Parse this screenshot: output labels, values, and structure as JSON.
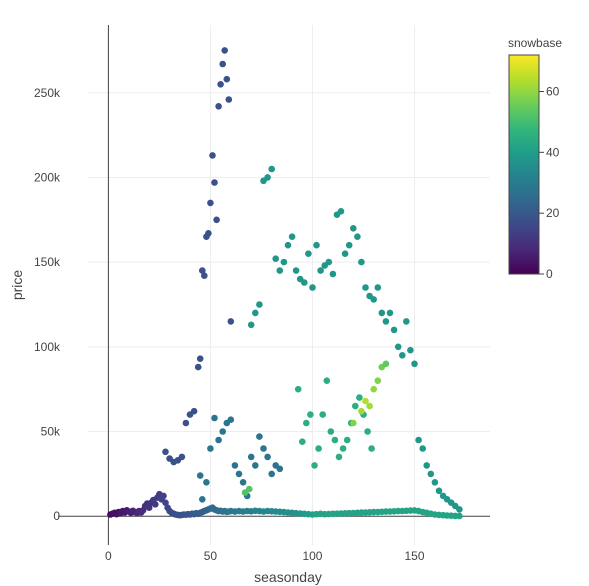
{
  "chart_data": {
    "type": "scatter",
    "title": "",
    "xlabel": "seasonday",
    "ylabel": "price",
    "xlim": [
      -10,
      187
    ],
    "ylim": [
      -17000,
      290000
    ],
    "x_ticks": [
      0,
      50,
      100,
      150
    ],
    "x_tick_labels": [
      "0",
      "50",
      "100",
      "150"
    ],
    "y_ticks": [
      0,
      50000,
      100000,
      150000,
      200000,
      250000
    ],
    "y_tick_labels": [
      "0",
      "50k",
      "100k",
      "150k",
      "200k",
      "250k"
    ],
    "grid": true,
    "colorbar": {
      "title": "snowbase",
      "range": [
        0,
        72
      ],
      "ticks": [
        0,
        20,
        40,
        60
      ],
      "tick_labels": [
        "0",
        "20",
        "40",
        "60"
      ],
      "colorscale": "viridis",
      "placement": "right"
    },
    "colorscale_stops": [
      "#440154",
      "#482878",
      "#3e4989",
      "#31688e",
      "#26828e",
      "#1f9e89",
      "#35b779",
      "#6ece58",
      "#b5de2b",
      "#fde725"
    ],
    "points": [
      [
        1,
        1000,
        2
      ],
      [
        2,
        1500,
        2
      ],
      [
        3,
        2000,
        3
      ],
      [
        4,
        1200,
        3
      ],
      [
        5,
        2500,
        3
      ],
      [
        6,
        1800,
        4
      ],
      [
        7,
        3000,
        5
      ],
      [
        8,
        2200,
        5
      ],
      [
        9,
        3500,
        5
      ],
      [
        10,
        2800,
        6
      ],
      [
        11,
        2000,
        6
      ],
      [
        12,
        3200,
        7
      ],
      [
        13,
        2500,
        7
      ],
      [
        14,
        1800,
        8
      ],
      [
        15,
        3000,
        8
      ],
      [
        16,
        2200,
        9
      ],
      [
        17,
        3500,
        9
      ],
      [
        18,
        6000,
        10
      ],
      [
        19,
        7500,
        10
      ],
      [
        20,
        5000,
        11
      ],
      [
        21,
        8000,
        11
      ],
      [
        22,
        9500,
        12
      ],
      [
        23,
        7000,
        12
      ],
      [
        24,
        11000,
        13
      ],
      [
        25,
        13000,
        13
      ],
      [
        26,
        10000,
        14
      ],
      [
        27,
        12000,
        14
      ],
      [
        28,
        8000,
        15
      ],
      [
        29,
        5000,
        15
      ],
      [
        30,
        3000,
        16
      ],
      [
        31,
        2000,
        16
      ],
      [
        32,
        1500,
        17
      ],
      [
        33,
        1000,
        17
      ],
      [
        34,
        800,
        18
      ],
      [
        35,
        600,
        18
      ],
      [
        36,
        800,
        18
      ],
      [
        37,
        1000,
        18
      ],
      [
        38,
        900,
        19
      ],
      [
        39,
        1200,
        19
      ],
      [
        40,
        1000,
        19
      ],
      [
        41,
        1500,
        20
      ],
      [
        42,
        1200,
        20
      ],
      [
        43,
        1800,
        21
      ],
      [
        44,
        1400,
        21
      ],
      [
        45,
        2000,
        21
      ],
      [
        46,
        2500,
        22
      ],
      [
        47,
        3000,
        22
      ],
      [
        48,
        3500,
        23
      ],
      [
        49,
        4000,
        23
      ],
      [
        50,
        4500,
        24
      ],
      [
        51,
        5000,
        24
      ],
      [
        52,
        4000,
        25
      ],
      [
        53,
        3500,
        25
      ],
      [
        54,
        3000,
        26
      ],
      [
        55,
        3200,
        26
      ],
      [
        56,
        2800,
        27
      ],
      [
        57,
        3000,
        27
      ],
      [
        58,
        2600,
        28
      ],
      [
        59,
        2800,
        28
      ],
      [
        60,
        3000,
        29
      ],
      [
        62,
        2700,
        29
      ],
      [
        64,
        3000,
        30
      ],
      [
        66,
        2800,
        30
      ],
      [
        68,
        3100,
        31
      ],
      [
        70,
        2900,
        31
      ],
      [
        72,
        3200,
        32
      ],
      [
        74,
        3000,
        32
      ],
      [
        76,
        2800,
        33
      ],
      [
        78,
        3100,
        33
      ],
      [
        80,
        2900,
        34
      ],
      [
        82,
        2800,
        34
      ],
      [
        84,
        2600,
        35
      ],
      [
        86,
        2400,
        35
      ],
      [
        88,
        2200,
        36
      ],
      [
        90,
        2000,
        36
      ],
      [
        92,
        1800,
        37
      ],
      [
        94,
        1600,
        38
      ],
      [
        96,
        1400,
        39
      ],
      [
        98,
        1200,
        40
      ],
      [
        100,
        1000,
        41
      ],
      [
        102,
        1200,
        42
      ],
      [
        104,
        1400,
        42
      ],
      [
        106,
        1200,
        42
      ],
      [
        108,
        1300,
        42
      ],
      [
        110,
        1400,
        42
      ],
      [
        112,
        1500,
        42
      ],
      [
        114,
        1600,
        42
      ],
      [
        116,
        1700,
        42
      ],
      [
        118,
        1800,
        42
      ],
      [
        120,
        1900,
        42
      ],
      [
        122,
        2000,
        42
      ],
      [
        124,
        2100,
        42
      ],
      [
        126,
        2200,
        42
      ],
      [
        128,
        2300,
        42
      ],
      [
        130,
        2400,
        42
      ],
      [
        132,
        2500,
        42
      ],
      [
        134,
        2600,
        42
      ],
      [
        136,
        2700,
        42
      ],
      [
        138,
        2800,
        42
      ],
      [
        140,
        2900,
        42
      ],
      [
        142,
        3000,
        42
      ],
      [
        144,
        3100,
        42
      ],
      [
        146,
        3200,
        42
      ],
      [
        148,
        3300,
        42
      ],
      [
        150,
        3400,
        42
      ],
      [
        152,
        3000,
        42
      ],
      [
        154,
        2500,
        42
      ],
      [
        156,
        2000,
        42
      ],
      [
        158,
        1500,
        42
      ],
      [
        160,
        1000,
        42
      ],
      [
        162,
        800,
        42
      ],
      [
        164,
        600,
        42
      ],
      [
        166,
        400,
        42
      ],
      [
        168,
        300,
        42
      ],
      [
        170,
        200,
        42
      ],
      [
        172,
        100,
        42
      ],
      [
        28,
        38000,
        18
      ],
      [
        30,
        34000,
        18
      ],
      [
        32,
        32000,
        18
      ],
      [
        34,
        33000,
        18
      ],
      [
        36,
        35000,
        18
      ],
      [
        38,
        55000,
        18
      ],
      [
        40,
        60000,
        18
      ],
      [
        42,
        62000,
        18
      ],
      [
        44,
        88000,
        18
      ],
      [
        45,
        93000,
        18
      ],
      [
        46,
        145000,
        18
      ],
      [
        47,
        142000,
        18
      ],
      [
        48,
        165000,
        18
      ],
      [
        49,
        167000,
        18
      ],
      [
        50,
        185000,
        18
      ],
      [
        51,
        213000,
        18
      ],
      [
        52,
        197000,
        18
      ],
      [
        53,
        175000,
        18
      ],
      [
        54,
        242000,
        18
      ],
      [
        55,
        255000,
        18
      ],
      [
        56,
        267000,
        18
      ],
      [
        57,
        275000,
        18
      ],
      [
        58,
        258000,
        18
      ],
      [
        59,
        246000,
        18
      ],
      [
        60,
        115000,
        18
      ],
      [
        45,
        24000,
        28
      ],
      [
        46,
        10000,
        28
      ],
      [
        48,
        20000,
        28
      ],
      [
        50,
        40000,
        28
      ],
      [
        52,
        58000,
        28
      ],
      [
        54,
        45000,
        28
      ],
      [
        56,
        50000,
        28
      ],
      [
        58,
        55000,
        28
      ],
      [
        60,
        57000,
        28
      ],
      [
        62,
        30000,
        28
      ],
      [
        64,
        25000,
        28
      ],
      [
        66,
        20000,
        28
      ],
      [
        68,
        12000,
        28
      ],
      [
        70,
        35000,
        28
      ],
      [
        72,
        30000,
        28
      ],
      [
        74,
        47000,
        28
      ],
      [
        76,
        40000,
        28
      ],
      [
        78,
        35000,
        28
      ],
      [
        80,
        25000,
        28
      ],
      [
        82,
        30000,
        28
      ],
      [
        84,
        28000,
        28
      ],
      [
        70,
        113000,
        38
      ],
      [
        72,
        120000,
        38
      ],
      [
        74,
        125000,
        38
      ],
      [
        76,
        198000,
        38
      ],
      [
        78,
        200000,
        38
      ],
      [
        80,
        205000,
        38
      ],
      [
        82,
        152000,
        38
      ],
      [
        84,
        145000,
        38
      ],
      [
        86,
        150000,
        38
      ],
      [
        88,
        160000,
        38
      ],
      [
        90,
        165000,
        38
      ],
      [
        92,
        145000,
        38
      ],
      [
        94,
        140000,
        38
      ],
      [
        96,
        138000,
        38
      ],
      [
        98,
        155000,
        38
      ],
      [
        100,
        135000,
        38
      ],
      [
        102,
        160000,
        38
      ],
      [
        104,
        145000,
        38
      ],
      [
        106,
        148000,
        38
      ],
      [
        108,
        150000,
        38
      ],
      [
        110,
        143000,
        38
      ],
      [
        112,
        178000,
        38
      ],
      [
        114,
        180000,
        38
      ],
      [
        116,
        155000,
        38
      ],
      [
        118,
        160000,
        38
      ],
      [
        120,
        170000,
        38
      ],
      [
        122,
        165000,
        38
      ],
      [
        124,
        150000,
        38
      ],
      [
        126,
        135000,
        38
      ],
      [
        128,
        130000,
        38
      ],
      [
        130,
        128000,
        38
      ],
      [
        132,
        135000,
        38
      ],
      [
        134,
        120000,
        38
      ],
      [
        136,
        115000,
        38
      ],
      [
        138,
        120000,
        38
      ],
      [
        140,
        110000,
        38
      ],
      [
        142,
        100000,
        38
      ],
      [
        144,
        95000,
        38
      ],
      [
        146,
        115000,
        38
      ],
      [
        148,
        98000,
        38
      ],
      [
        150,
        90000,
        38
      ],
      [
        152,
        45000,
        38
      ],
      [
        154,
        40000,
        38
      ],
      [
        156,
        30000,
        38
      ],
      [
        158,
        25000,
        38
      ],
      [
        160,
        20000,
        38
      ],
      [
        162,
        15000,
        38
      ],
      [
        164,
        12000,
        38
      ],
      [
        166,
        10000,
        38
      ],
      [
        168,
        8000,
        38
      ],
      [
        170,
        6000,
        38
      ],
      [
        172,
        4000,
        38
      ],
      [
        93,
        75000,
        45
      ],
      [
        95,
        44000,
        45
      ],
      [
        97,
        55000,
        45
      ],
      [
        99,
        60000,
        45
      ],
      [
        101,
        30000,
        45
      ],
      [
        103,
        40000,
        45
      ],
      [
        105,
        60000,
        45
      ],
      [
        107,
        80000,
        45
      ],
      [
        109,
        50000,
        45
      ],
      [
        111,
        45000,
        45
      ],
      [
        113,
        35000,
        45
      ],
      [
        115,
        40000,
        45
      ],
      [
        117,
        45000,
        45
      ],
      [
        119,
        55000,
        45
      ],
      [
        121,
        65000,
        45
      ],
      [
        123,
        70000,
        45
      ],
      [
        125,
        60000,
        45
      ],
      [
        127,
        50000,
        45
      ],
      [
        129,
        40000,
        45
      ],
      [
        67,
        14000,
        52
      ],
      [
        69,
        16000,
        52
      ],
      [
        120,
        55000,
        58
      ],
      [
        124,
        62000,
        62
      ],
      [
        126,
        68000,
        64
      ],
      [
        128,
        65000,
        62
      ],
      [
        130,
        75000,
        60
      ],
      [
        132,
        80000,
        58
      ],
      [
        134,
        88000,
        56
      ],
      [
        136,
        90000,
        54
      ]
    ]
  }
}
